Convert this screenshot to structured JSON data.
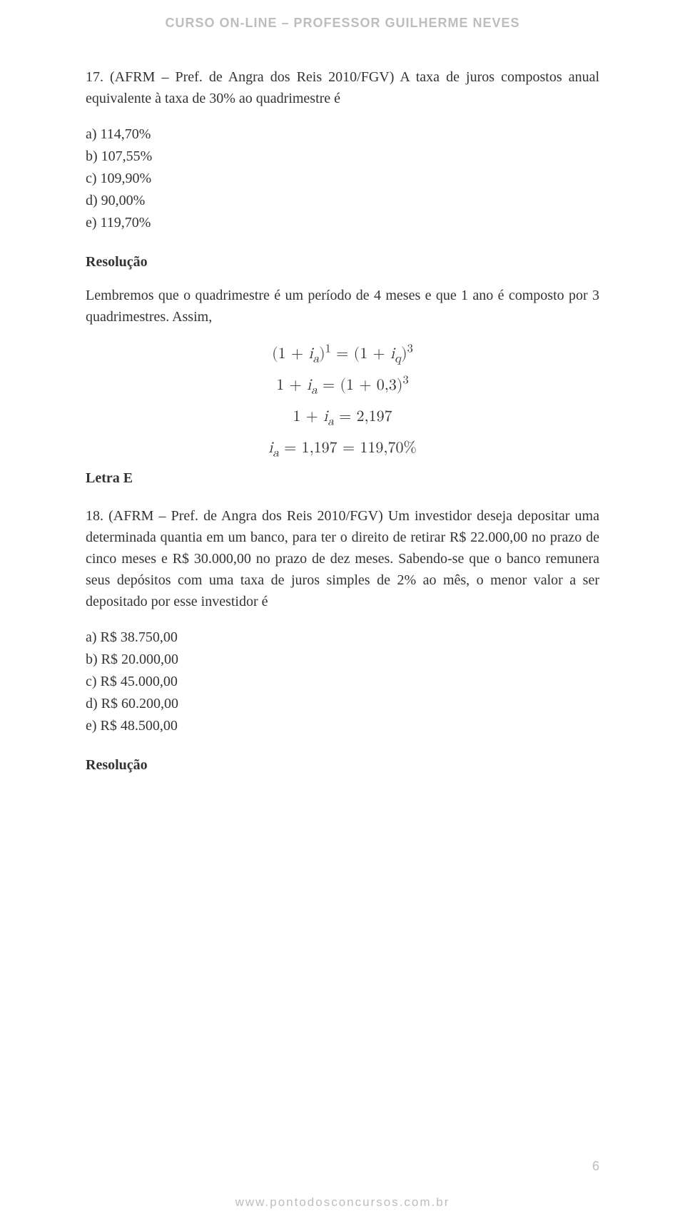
{
  "header": "CURSO ON-LINE – PROFESSOR GUILHERME NEVES",
  "q17": {
    "prompt": "17. (AFRM – Pref. de Angra dos Reis 2010/FGV) A taxa de juros compostos anual equivalente à taxa de 30% ao quadrimestre é",
    "options": {
      "a": "a) 114,70%",
      "b": "b) 107,55%",
      "c": "c) 109,90%",
      "d": "d) 90,00%",
      "e": "e) 119,70%"
    }
  },
  "resolucao_label": "Resolução",
  "body1": "Lembremos que o quadrimestre é um período de 4 meses e que 1 ano é composto por 3 quadrimestres. Assim,",
  "answer_letter": "Letra E",
  "eqs": {
    "p1a": "(1 + ",
    "p1b": ")",
    "p1exp1": "1",
    "p1c": " = (1 + ",
    "p1d": ")",
    "p1exp3": "3",
    "p2a": "1 + ",
    "p2b": " = (1 + 0,3)",
    "p2exp3": "3",
    "p3a": "1 + ",
    "p3b": " = 2,197",
    "p4b": " = 1,197 = 119,70%",
    "var_i": "i",
    "sub_a": "a",
    "sub_q": "q"
  },
  "q18": {
    "prompt": "18. (AFRM – Pref. de Angra dos Reis 2010/FGV) Um investidor deseja depositar uma determinada quantia em um banco, para ter o direito de retirar R$ 22.000,00 no prazo de cinco meses e R$ 30.000,00 no prazo de dez meses. Sabendo-se que o banco remunera seus depósitos com uma taxa de juros simples de 2% ao mês, o menor valor a ser depositado por esse investidor é",
    "options": {
      "a": "a) R$ 38.750,00",
      "b": "b) R$ 20.000,00",
      "c": "c) R$ 45.000,00",
      "d": "d) R$ 60.200,00",
      "e": "e) R$ 48.500,00"
    }
  },
  "footer": "www.pontodosconcursos.com.br",
  "page_number": "6"
}
